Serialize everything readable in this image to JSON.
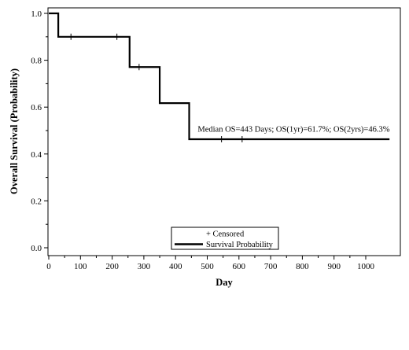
{
  "chart_data": {
    "type": "line",
    "title": "",
    "xlabel": "Day",
    "ylabel": "Overall Survival (Probability)",
    "xlim": [
      0,
      1080
    ],
    "ylim": [
      0,
      1.0
    ],
    "x_ticks": [
      0,
      100,
      200,
      300,
      400,
      500,
      600,
      700,
      800,
      900,
      1000
    ],
    "y_ticks": [
      0.0,
      0.2,
      0.4,
      0.6,
      0.8,
      1.0
    ],
    "y_tick_labels": [
      "0.0",
      "0.2",
      "0.4",
      "0.6",
      "0.8",
      "1.0"
    ],
    "grid": false,
    "series": [
      {
        "name": "Survival Probability",
        "step": true,
        "points": [
          {
            "x": 0,
            "y": 1.0
          },
          {
            "x": 30,
            "y": 0.9
          },
          {
            "x": 255,
            "y": 0.771
          },
          {
            "x": 350,
            "y": 0.617
          },
          {
            "x": 443,
            "y": 0.463
          },
          {
            "x": 1075,
            "y": 0.463
          }
        ]
      }
    ],
    "censored": {
      "name": "Censored",
      "marker": "+",
      "points": [
        {
          "x": 70,
          "y": 0.9
        },
        {
          "x": 215,
          "y": 0.9
        },
        {
          "x": 285,
          "y": 0.771
        },
        {
          "x": 545,
          "y": 0.463
        },
        {
          "x": 610,
          "y": 0.463
        }
      ]
    },
    "annotation": {
      "text": "Median OS=443 Days; OS(1yr)=61.7%; OS(2yrs)=46.3%",
      "x": 460,
      "y": 0.495
    },
    "legend": {
      "placement": "bottom-center",
      "entries": [
        {
          "label": "+ Censored",
          "symbol": "none"
        },
        {
          "label": "Survival Probability",
          "symbol": "line"
        }
      ]
    }
  }
}
